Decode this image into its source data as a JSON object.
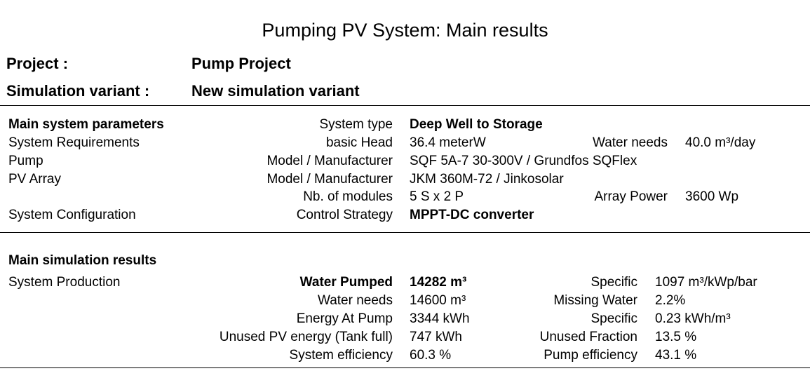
{
  "title": "Pumping PV System: Main results",
  "project": {
    "label": "Project :",
    "value": "Pump Project"
  },
  "variant": {
    "label": "Simulation variant :",
    "value": "New simulation variant"
  },
  "params": {
    "heading": "Main system parameters",
    "system_type_label": "System type",
    "system_type_value": "Deep Well to Storage",
    "req_label": "System Requirements",
    "head_label": "basic Head",
    "head_value": "36.4 meterW",
    "water_needs_label": "Water needs",
    "water_needs_value": "40.0 m³/day",
    "pump_label": "Pump",
    "pump_model_label": "Model / Manufacturer",
    "pump_model_value": "SQF 5A-7  30-300V / Grundfos SQFlex",
    "pv_label": "PV Array",
    "pv_model_label": "Model / Manufacturer",
    "pv_model_value": "JKM 360M-72 / Jinkosolar",
    "modules_label": "Nb. of modules",
    "modules_value": "5 S x 2 P",
    "array_power_label": "Array Power",
    "array_power_value": "3600 Wp",
    "config_label": "System Configuration",
    "control_label": "Control Strategy",
    "control_value": "MPPT-DC converter"
  },
  "results": {
    "heading": "Main simulation results",
    "production_label": "System  Production",
    "water_pumped_label": "Water  Pumped",
    "water_pumped_value": "14282 m³",
    "specific1_label": "Specific",
    "specific1_value": "1097 m³/kWp/bar",
    "water_needs_label": "Water needs",
    "water_needs_value": "14600 m³",
    "missing_label": "Missing Water",
    "missing_value": "2.2%",
    "energy_label": "Energy At Pump",
    "energy_value": "3344 kWh",
    "specific2_label": "Specific",
    "specific2_value": "0.23 kWh/m³",
    "unused_label": "Unused PV energy (Tank full)",
    "unused_value": "747 kWh",
    "unused_fraction_label": "Unused Fraction",
    "unused_fraction_value": "13.5 %",
    "sys_eff_label": "System  efficiency",
    "sys_eff_value": "60.3 %",
    "pump_eff_label": "Pump efficiency",
    "pump_eff_value": "43.1 %"
  }
}
